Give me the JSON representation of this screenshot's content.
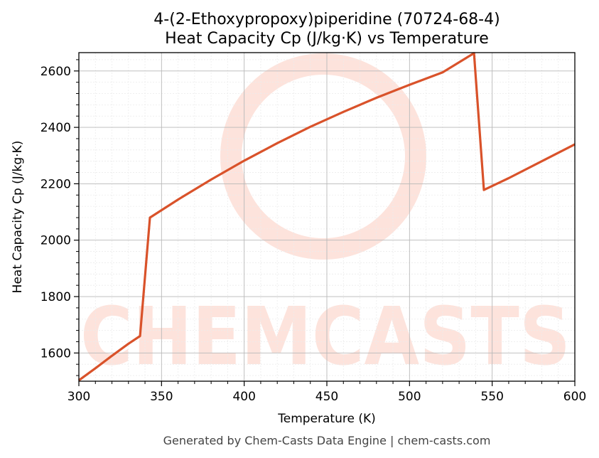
{
  "chart_data": {
    "type": "line",
    "title_line1": "4-(2-Ethoxypropoxy)piperidine (70724-68-4)",
    "title_line2": "Heat Capacity Cp (J/kg·K) vs Temperature",
    "xlabel": "Temperature (K)",
    "ylabel": "Heat Capacity Cp (J/kg·K)",
    "xlim": [
      300,
      600
    ],
    "ylim": [
      1500,
      2665
    ],
    "xticks": [
      300,
      350,
      400,
      450,
      500,
      550,
      600
    ],
    "yticks": [
      1600,
      1800,
      2000,
      2200,
      2400,
      2600
    ],
    "grid": true,
    "series": [
      {
        "color": "#d9522a",
        "x": [
          300,
          310,
          320,
          330,
          337,
          343,
          360,
          380,
          400,
          420,
          440,
          460,
          480,
          500,
          520,
          539,
          545,
          560,
          580,
          600
        ],
        "y": [
          1503,
          1546,
          1590,
          1633,
          1660,
          2080,
          2144,
          2215,
          2282,
          2344,
          2402,
          2455,
          2505,
          2551,
          2595,
          2663,
          2178,
          2220,
          2280,
          2340
        ]
      }
    ]
  },
  "watermark": {
    "text": "CHEMCASTS",
    "color": "#fde3dc"
  },
  "footer": {
    "text": "Generated by Chem-Casts Data Engine | chem-casts.com"
  }
}
